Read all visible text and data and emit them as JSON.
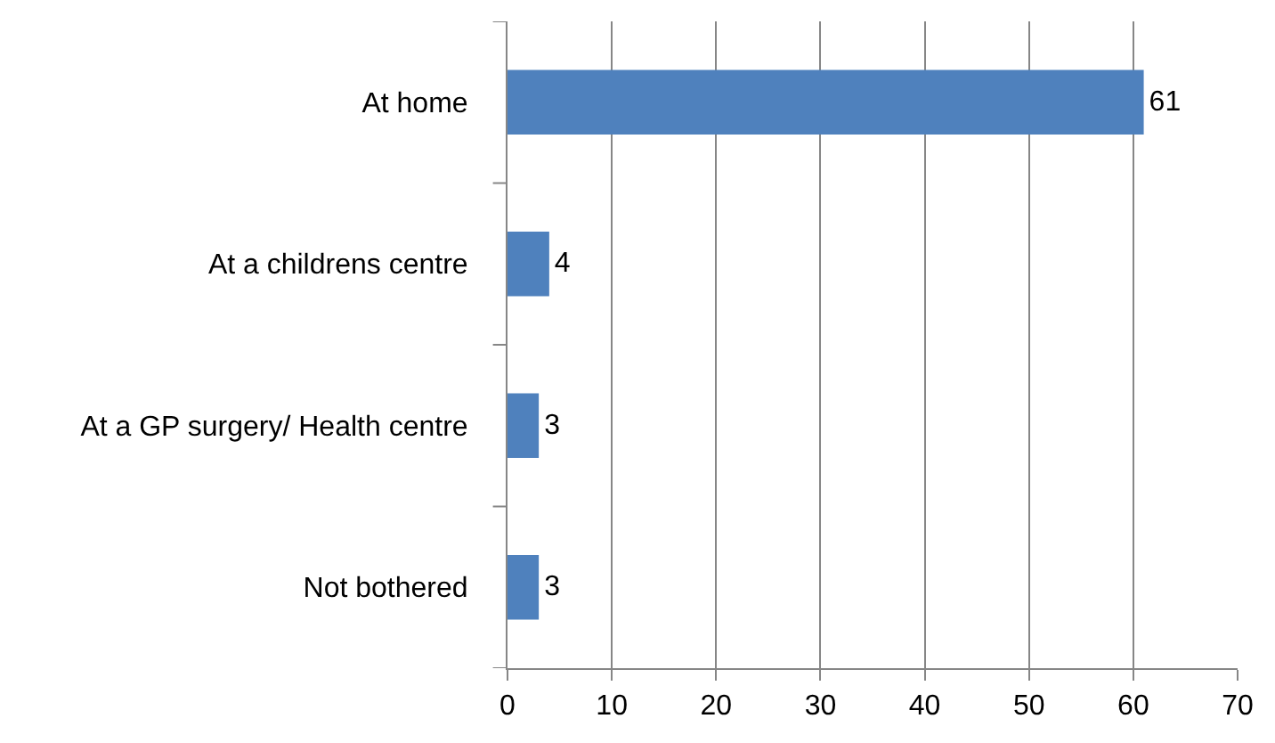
{
  "chart_data": {
    "type": "bar",
    "orientation": "horizontal",
    "categories": [
      "At home",
      "At a childrens centre",
      "At a GP surgery/ Health centre",
      "Not bothered"
    ],
    "values": [
      61,
      4,
      3,
      3
    ],
    "color": "#4f81bd",
    "xlim": [
      0,
      70
    ],
    "xticks": [
      0,
      10,
      20,
      30,
      40,
      50,
      60,
      70
    ],
    "grid": "x",
    "data_labels": true,
    "legend": false
  }
}
